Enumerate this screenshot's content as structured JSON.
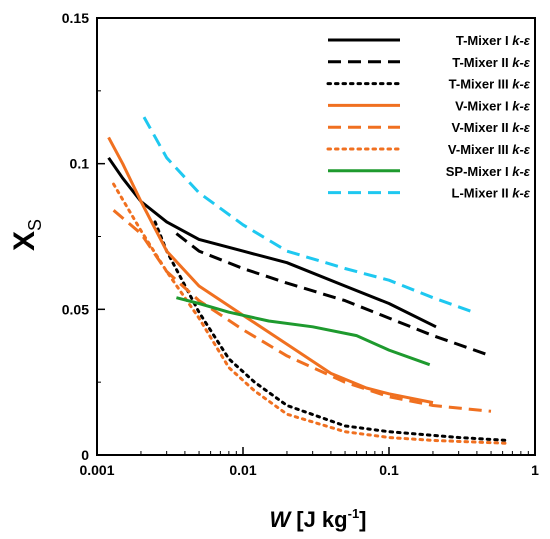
{
  "chart_data": {
    "type": "line",
    "title": "",
    "xlabel": {
      "symbol": "W",
      "unit_prefix": "[J kg",
      "unit_exp": "-1",
      "unit_suffix": "]"
    },
    "ylabel": {
      "symbol": "X",
      "subscript": "S"
    },
    "xscale": "log",
    "xlim": [
      0.001,
      1
    ],
    "ylim": [
      0,
      0.15
    ],
    "xticks": [
      0.001,
      0.01,
      0.1,
      1
    ],
    "xtick_labels": [
      "0.001",
      "0.01",
      "0.1",
      "1"
    ],
    "yticks": [
      0,
      0.05,
      0.1,
      0.15
    ],
    "ytick_labels": [
      "0",
      "0.05",
      "0.1",
      "0.15"
    ],
    "grid": false,
    "legend_position": "top-right",
    "series": [
      {
        "name": "T-Mixer I",
        "model": "k-ε",
        "color": "#000000",
        "dash": "solid",
        "x": [
          0.0012,
          0.0015,
          0.002,
          0.003,
          0.005,
          0.01,
          0.02,
          0.05,
          0.1,
          0.21
        ],
        "y": [
          0.102,
          0.095,
          0.087,
          0.08,
          0.074,
          0.07,
          0.066,
          0.058,
          0.052,
          0.044
        ]
      },
      {
        "name": "T-Mixer II",
        "model": "k-ε",
        "color": "#000000",
        "dash": "dashed",
        "x": [
          0.0035,
          0.005,
          0.01,
          0.02,
          0.05,
          0.1,
          0.2,
          0.5
        ],
        "y": [
          0.076,
          0.07,
          0.064,
          0.059,
          0.053,
          0.047,
          0.041,
          0.034
        ]
      },
      {
        "name": "T-Mixer III",
        "model": "k-ε",
        "color": "#000000",
        "dash": "dotted",
        "x": [
          0.0025,
          0.003,
          0.005,
          0.008,
          0.012,
          0.02,
          0.05,
          0.1,
          0.3,
          0.65
        ],
        "y": [
          0.08,
          0.07,
          0.049,
          0.033,
          0.025,
          0.017,
          0.01,
          0.008,
          0.006,
          0.005
        ]
      },
      {
        "name": "V-Mixer I",
        "model": "k-ε",
        "color": "#F07020",
        "dash": "solid",
        "x": [
          0.0012,
          0.0015,
          0.002,
          0.003,
          0.005,
          0.01,
          0.02,
          0.04,
          0.07,
          0.1,
          0.2
        ],
        "y": [
          0.109,
          0.1,
          0.087,
          0.07,
          0.058,
          0.048,
          0.038,
          0.028,
          0.023,
          0.021,
          0.018
        ]
      },
      {
        "name": "V-Mixer II",
        "model": "k-ε",
        "color": "#F07020",
        "dash": "dashed",
        "x": [
          0.0013,
          0.002,
          0.003,
          0.005,
          0.01,
          0.02,
          0.05,
          0.1,
          0.2,
          0.5
        ],
        "y": [
          0.084,
          0.076,
          0.063,
          0.053,
          0.043,
          0.034,
          0.025,
          0.02,
          0.017,
          0.015
        ]
      },
      {
        "name": "V-Mixer III",
        "model": "k-ε",
        "color": "#F07020",
        "dash": "dotted",
        "x": [
          0.0013,
          0.002,
          0.003,
          0.005,
          0.008,
          0.012,
          0.02,
          0.05,
          0.1,
          0.2,
          0.65
        ],
        "y": [
          0.093,
          0.077,
          0.063,
          0.047,
          0.03,
          0.022,
          0.014,
          0.008,
          0.006,
          0.005,
          0.004
        ]
      },
      {
        "name": "SP-Mixer I",
        "model": "k-ε",
        "color": "#1E9A2E",
        "dash": "solid",
        "x": [
          0.0035,
          0.005,
          0.008,
          0.015,
          0.03,
          0.06,
          0.1,
          0.19
        ],
        "y": [
          0.054,
          0.052,
          0.049,
          0.046,
          0.044,
          0.041,
          0.036,
          0.031
        ]
      },
      {
        "name": "L-Mixer II",
        "model": "k-ε",
        "color": "#1EC8F0",
        "dash": "dashed",
        "x": [
          0.0021,
          0.003,
          0.005,
          0.01,
          0.02,
          0.05,
          0.1,
          0.2,
          0.38
        ],
        "y": [
          0.116,
          0.102,
          0.09,
          0.079,
          0.07,
          0.064,
          0.06,
          0.054,
          0.049
        ]
      }
    ]
  }
}
